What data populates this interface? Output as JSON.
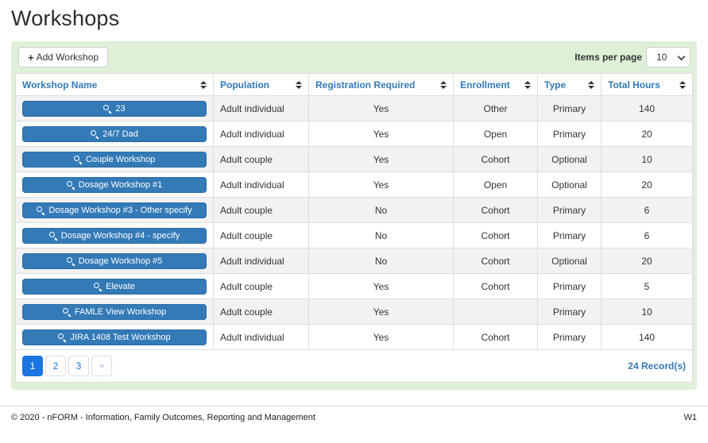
{
  "page": {
    "title": "Workshops"
  },
  "toolbar": {
    "add_button_label": "Add Workshop",
    "add_button_icon": "+",
    "items_per_page_label": "Items per page",
    "items_per_page_value": "10"
  },
  "table": {
    "columns": [
      "Workshop Name",
      "Population",
      "Registration Required",
      "Enrollment",
      "Type",
      "Total Hours"
    ],
    "rows": [
      {
        "name": "23",
        "population": "Adult individual",
        "registration_required": "Yes",
        "enrollment": "Other",
        "type": "Primary",
        "total_hours": "140"
      },
      {
        "name": "24/7 Dad",
        "population": "Adult individual",
        "registration_required": "Yes",
        "enrollment": "Open",
        "type": "Primary",
        "total_hours": "20"
      },
      {
        "name": "Couple Workshop",
        "population": "Adult couple",
        "registration_required": "Yes",
        "enrollment": "Cohort",
        "type": "Optional",
        "total_hours": "10"
      },
      {
        "name": "Dosage Workshop #1",
        "population": "Adult individual",
        "registration_required": "Yes",
        "enrollment": "Open",
        "type": "Optional",
        "total_hours": "20"
      },
      {
        "name": "Dosage Workshop #3 - Other specify",
        "population": "Adult couple",
        "registration_required": "No",
        "enrollment": "Cohort",
        "type": "Primary",
        "total_hours": "6"
      },
      {
        "name": "Dosage Workshop #4 - specify",
        "population": "Adult couple",
        "registration_required": "No",
        "enrollment": "Cohort",
        "type": "Primary",
        "total_hours": "6"
      },
      {
        "name": "Dosage Workshop #5",
        "population": "Adult individual",
        "registration_required": "No",
        "enrollment": "Cohort",
        "type": "Optional",
        "total_hours": "20"
      },
      {
        "name": "Elevate",
        "population": "Adult couple",
        "registration_required": "Yes",
        "enrollment": "Cohort",
        "type": "Primary",
        "total_hours": "5"
      },
      {
        "name": "FAMLE View Workshop",
        "population": "Adult couple",
        "registration_required": "Yes",
        "enrollment": "",
        "type": "Primary",
        "total_hours": "10"
      },
      {
        "name": "JIRA 1408 Test Workshop",
        "population": "Adult individual",
        "registration_required": "Yes",
        "enrollment": "Cohort",
        "type": "Primary",
        "total_hours": "140"
      }
    ]
  },
  "pagination": {
    "pages": [
      "1",
      "2",
      "3"
    ],
    "active_page": "1",
    "next_label": "»",
    "records_text": "24 Record(s)"
  },
  "footer": {
    "copyright": "© 2020 - nFORM - Information, Family Outcomes, Reporting and Management",
    "version": "W1"
  },
  "icons": {
    "workshop_button": "magnifier-search",
    "column_header": "sort-up-down-arrows",
    "items_per_page": "chevron-down",
    "add_button": "plus"
  },
  "colors": {
    "panel_green": "#dff0d8",
    "accent_blue": "#337ab7",
    "pagination_blue": "#1b74e0",
    "row_stripe": "#f2f2f2",
    "border_gray": "#dddddd"
  }
}
